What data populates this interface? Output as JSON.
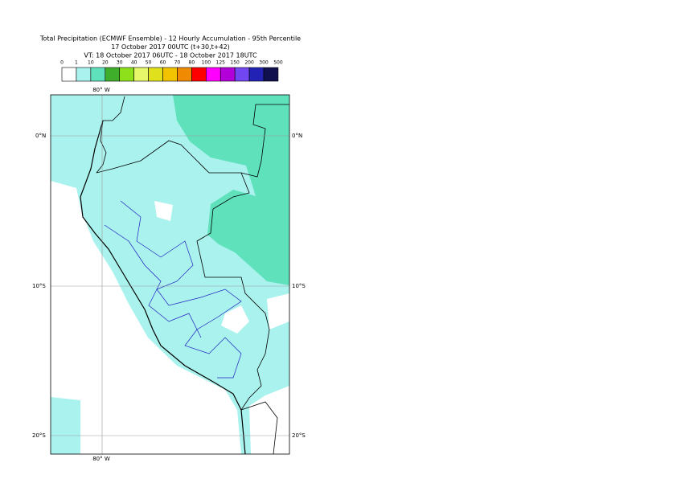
{
  "title": [
    "Total Precipitation (ECMWF Ensemble) - 12 Hourly Accumulation - 95th Percentile",
    "17 October 2017 00UTC (t+30,t+42)",
    "VT: 18 October 2017 06UTC - 18 October 2017 18UTC"
  ],
  "legend": {
    "levels": [
      0,
      1,
      10,
      20,
      30,
      40,
      50,
      60,
      70,
      80,
      100,
      125,
      150,
      200,
      300,
      500
    ],
    "colors": [
      "#ffffff",
      "#aaf2ee",
      "#5fe1bc",
      "#3fae2a",
      "#8ee01a",
      "#e6f76a",
      "#e0e01c",
      "#f2c400",
      "#f08a00",
      "#ff0000",
      "#ff00ff",
      "#b400d8",
      "#7246f0",
      "#2222b4",
      "#10104e"
    ]
  },
  "map": {
    "meridians": [
      {
        "label": "80° W"
      }
    ],
    "parallels": [
      {
        "label": "0°N"
      },
      {
        "label": "10°S"
      },
      {
        "label": "20°S"
      }
    ]
  }
}
